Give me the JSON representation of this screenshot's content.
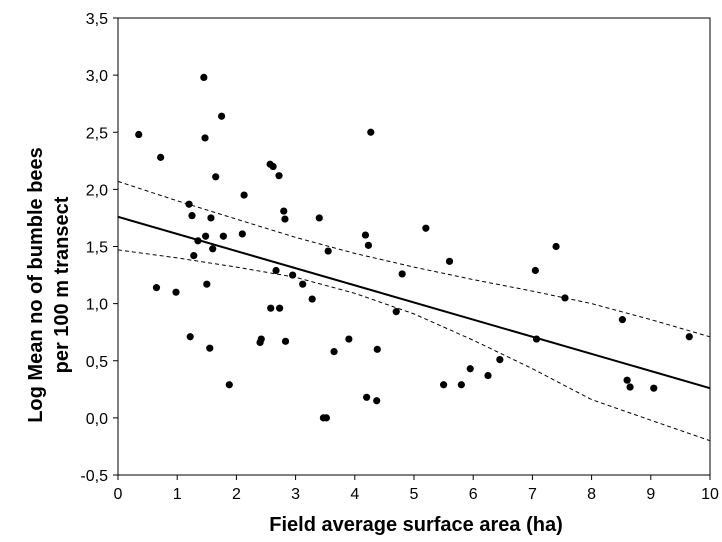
{
  "chart_data": {
    "type": "scatter",
    "title": "",
    "xlabel": "Field average surface area (ha)",
    "ylabel_lines": [
      "Log Mean no of bumble bees",
      "per 100 m transect"
    ],
    "xlim": [
      0,
      10
    ],
    "ylim": [
      -0.5,
      3.5
    ],
    "x_ticks": [
      0,
      1,
      2,
      3,
      4,
      5,
      6,
      7,
      8,
      9,
      10
    ],
    "x_tick_labels": [
      "0",
      "1",
      "2",
      "3",
      "4",
      "5",
      "6",
      "7",
      "8",
      "9",
      "10"
    ],
    "y_ticks": [
      -0.5,
      0,
      0.5,
      1,
      1.5,
      2,
      2.5,
      3,
      3.5
    ],
    "y_tick_labels": [
      "-0,5",
      "0,0",
      "0,5",
      "1,0",
      "1,5",
      "2,0",
      "2,5",
      "3,0",
      "3,5"
    ],
    "grid": false,
    "points": [
      {
        "x": 0.35,
        "y": 2.48
      },
      {
        "x": 0.65,
        "y": 1.14
      },
      {
        "x": 0.72,
        "y": 2.28
      },
      {
        "x": 0.98,
        "y": 1.1
      },
      {
        "x": 1.2,
        "y": 1.87
      },
      {
        "x": 1.22,
        "y": 0.71
      },
      {
        "x": 1.25,
        "y": 1.77
      },
      {
        "x": 1.28,
        "y": 1.42
      },
      {
        "x": 1.35,
        "y": 1.55
      },
      {
        "x": 1.45,
        "y": 2.98
      },
      {
        "x": 1.47,
        "y": 2.45
      },
      {
        "x": 1.48,
        "y": 1.59
      },
      {
        "x": 1.5,
        "y": 1.17
      },
      {
        "x": 1.55,
        "y": 0.61
      },
      {
        "x": 1.57,
        "y": 1.75
      },
      {
        "x": 1.6,
        "y": 1.48
      },
      {
        "x": 1.65,
        "y": 2.11
      },
      {
        "x": 1.75,
        "y": 2.64
      },
      {
        "x": 1.78,
        "y": 1.59
      },
      {
        "x": 1.88,
        "y": 0.29
      },
      {
        "x": 2.1,
        "y": 1.61
      },
      {
        "x": 2.13,
        "y": 1.95
      },
      {
        "x": 2.4,
        "y": 0.66
      },
      {
        "x": 2.42,
        "y": 0.69
      },
      {
        "x": 2.57,
        "y": 2.22
      },
      {
        "x": 2.58,
        "y": 0.96
      },
      {
        "x": 2.62,
        "y": 2.2
      },
      {
        "x": 2.67,
        "y": 1.29
      },
      {
        "x": 2.72,
        "y": 2.12
      },
      {
        "x": 2.73,
        "y": 0.96
      },
      {
        "x": 2.8,
        "y": 1.81
      },
      {
        "x": 2.82,
        "y": 1.74
      },
      {
        "x": 2.83,
        "y": 0.67
      },
      {
        "x": 2.95,
        "y": 1.25
      },
      {
        "x": 3.12,
        "y": 1.17
      },
      {
        "x": 3.28,
        "y": 1.04
      },
      {
        "x": 3.4,
        "y": 1.75
      },
      {
        "x": 3.47,
        "y": 0.0
      },
      {
        "x": 3.52,
        "y": 0.0
      },
      {
        "x": 3.55,
        "y": 1.46
      },
      {
        "x": 3.65,
        "y": 0.58
      },
      {
        "x": 3.9,
        "y": 0.69
      },
      {
        "x": 4.18,
        "y": 1.6
      },
      {
        "x": 4.2,
        "y": 0.18
      },
      {
        "x": 4.23,
        "y": 1.51
      },
      {
        "x": 4.27,
        "y": 2.5
      },
      {
        "x": 4.37,
        "y": 0.15
      },
      {
        "x": 4.38,
        "y": 0.6
      },
      {
        "x": 4.7,
        "y": 0.93
      },
      {
        "x": 4.8,
        "y": 1.26
      },
      {
        "x": 5.2,
        "y": 1.66
      },
      {
        "x": 5.5,
        "y": 0.29
      },
      {
        "x": 5.6,
        "y": 1.37
      },
      {
        "x": 5.8,
        "y": 0.29
      },
      {
        "x": 5.95,
        "y": 0.43
      },
      {
        "x": 6.25,
        "y": 0.37
      },
      {
        "x": 6.45,
        "y": 0.51
      },
      {
        "x": 7.05,
        "y": 1.29
      },
      {
        "x": 7.07,
        "y": 0.69
      },
      {
        "x": 7.4,
        "y": 1.5
      },
      {
        "x": 7.55,
        "y": 1.05
      },
      {
        "x": 8.52,
        "y": 0.86
      },
      {
        "x": 8.6,
        "y": 0.33
      },
      {
        "x": 8.65,
        "y": 0.27
      },
      {
        "x": 9.05,
        "y": 0.26
      },
      {
        "x": 9.65,
        "y": 0.71
      }
    ],
    "regression_line": {
      "x": [
        0,
        10
      ],
      "y": [
        1.76,
        0.26
      ],
      "style": "solid"
    },
    "confidence_bands": {
      "style": "dashed",
      "x": [
        0,
        1,
        2,
        3,
        4,
        5,
        6,
        7,
        8,
        9,
        10
      ],
      "upper": [
        2.07,
        1.9,
        1.74,
        1.58,
        1.44,
        1.32,
        1.21,
        1.11,
        1.0,
        0.86,
        0.71
      ],
      "lower": [
        1.47,
        1.4,
        1.32,
        1.23,
        1.09,
        0.91,
        0.68,
        0.43,
        0.16,
        -0.02,
        -0.2
      ]
    }
  }
}
